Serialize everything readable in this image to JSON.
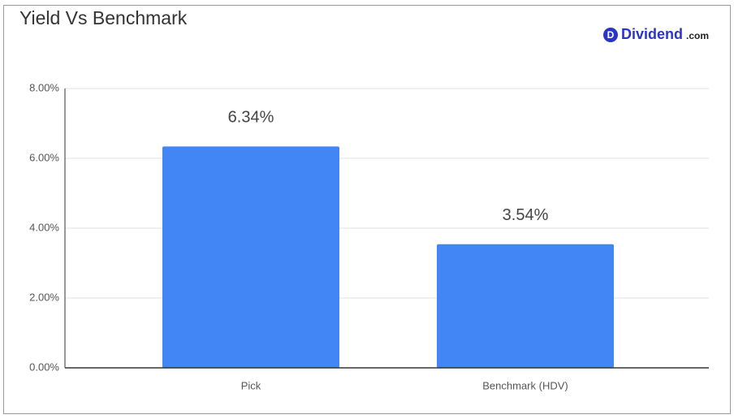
{
  "chart_data": {
    "type": "bar",
    "title": "Yield Vs Benchmark",
    "logo_icon": "D",
    "logo_name": "Dividend",
    "logo_suffix": ".com",
    "categories": [
      "Pick",
      "Benchmark (HDV)"
    ],
    "values": [
      6.34,
      3.54
    ],
    "value_labels": [
      "6.34%",
      "3.54%"
    ],
    "color": "#4285f4",
    "ylim": [
      0,
      8
    ],
    "yticks": [
      {
        "value": 0,
        "label": "0.00%"
      },
      {
        "value": 2,
        "label": "2.00%"
      },
      {
        "value": 4,
        "label": "4.00%"
      },
      {
        "value": 6,
        "label": "6.00%"
      },
      {
        "value": 8,
        "label": "8.00%"
      }
    ],
    "grid": true
  }
}
